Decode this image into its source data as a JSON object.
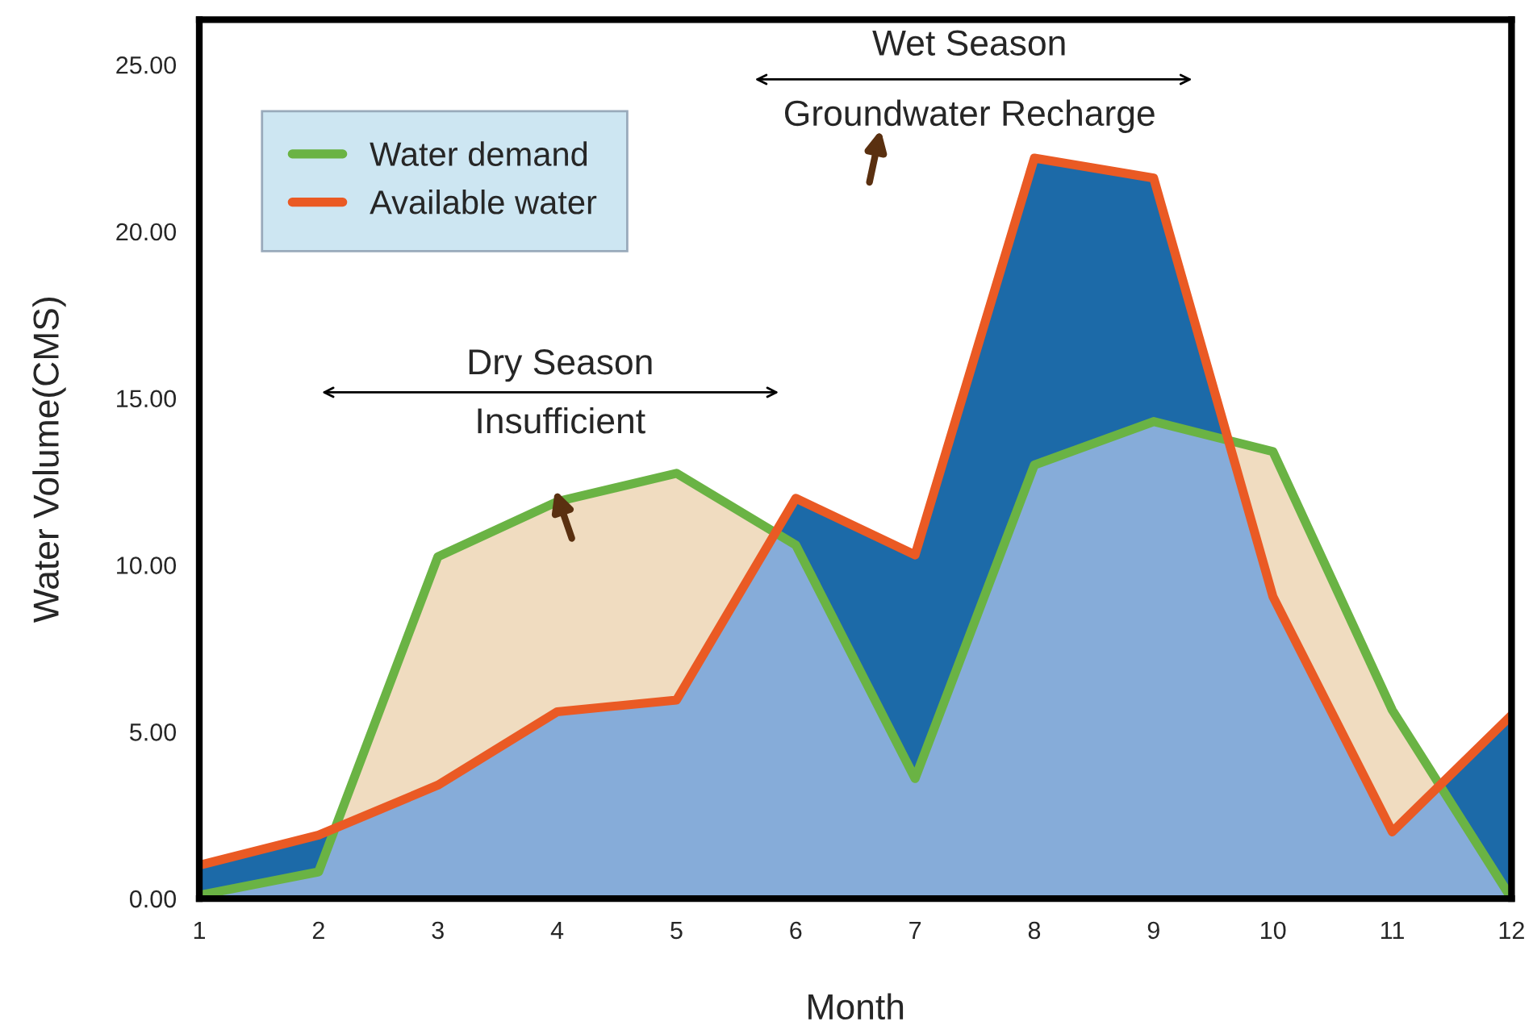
{
  "chart_data": {
    "type": "line",
    "xlabel": "Month",
    "ylabel": "Water Volume(CMS)",
    "x": [
      1,
      2,
      3,
      4,
      5,
      6,
      7,
      8,
      9,
      10,
      11,
      12
    ],
    "series": [
      {
        "name": "Water demand",
        "color": "#6ab344",
        "values": [
          0.1,
          0.8,
          10.25,
          11.9,
          12.75,
          10.6,
          3.6,
          13.0,
          14.3,
          13.4,
          5.65,
          0
        ]
      },
      {
        "name": "Available water",
        "color": "#ea5a24",
        "values": [
          1.0,
          1.9,
          3.4,
          5.6,
          5.95,
          12.0,
          10.3,
          22.2,
          21.6,
          9.05,
          2.0,
          5.5
        ]
      }
    ],
    "xlim": [
      1,
      12
    ],
    "ylim": [
      0,
      26.35
    ],
    "xticks": [
      1,
      2,
      3,
      4,
      5,
      6,
      7,
      8,
      9,
      10,
      11,
      12
    ],
    "yticks": [
      {
        "value": 0,
        "label": "0.00"
      },
      {
        "value": 5,
        "label": "5.00"
      },
      {
        "value": 10,
        "label": "10.00"
      },
      {
        "value": 15,
        "label": "15.00"
      },
      {
        "value": 20,
        "label": "20.00"
      },
      {
        "value": 25,
        "label": "25.00"
      }
    ],
    "annotations": [
      "Dry Season",
      "Insufficient",
      "Wet Season",
      "Groundwater Recharge"
    ],
    "grid": false,
    "legend": "top left",
    "line_style": "solid",
    "marker": "none"
  }
}
